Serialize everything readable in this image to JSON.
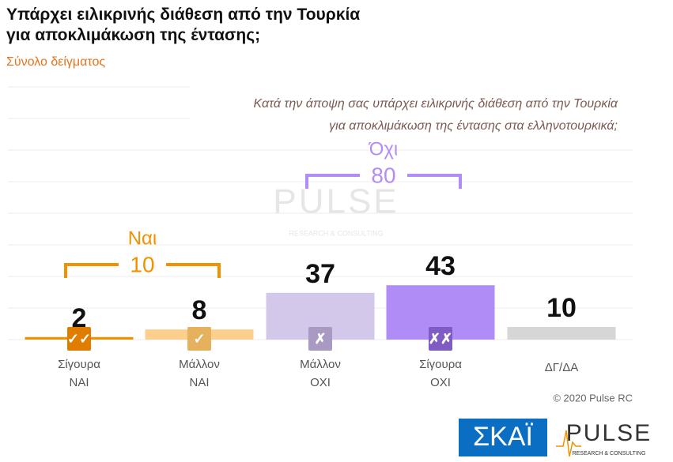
{
  "chart_data": {
    "type": "bar",
    "title": "Υπάρχει ειλικρινής διάθεση από την Τουρκία\nγια αποκλιμάκωση της έντασης;",
    "subtitle": "Σύνολο δείγματος",
    "question": "Κατά την άποψη σας υπάρχει ειλικρινής διάθεση από την Τουρκία\nγια αποκλιμάκωση της έντασης στα ελληνοτουρκικά;",
    "categories": [
      [
        "Σίγουρα",
        "ΝΑΙ"
      ],
      [
        "Μάλλον",
        "ΝΑΙ"
      ],
      [
        "Μάλλον",
        "ΟΧΙ"
      ],
      [
        "Σίγουρα",
        "ΟΧΙ"
      ],
      [
        "ΔΓ/ΔΑ"
      ]
    ],
    "values": [
      2,
      8,
      37,
      43,
      10
    ],
    "colors": [
      "#f39200",
      "#fcd08c",
      "#d4c8ea",
      "#b08cf6",
      "#d6d6d6"
    ],
    "groups": [
      {
        "label": "Ναι",
        "value": 10,
        "color": "#f39200"
      },
      {
        "label": "Όχι",
        "value": 80,
        "color": "#b28df8"
      }
    ],
    "copyright": "© 2020 Pulse RC",
    "logos": {
      "skai": "ΣΚΑΪ",
      "pulse": "PULSE",
      "pulse_sub": "RESEARCH & CONSULTING"
    }
  }
}
